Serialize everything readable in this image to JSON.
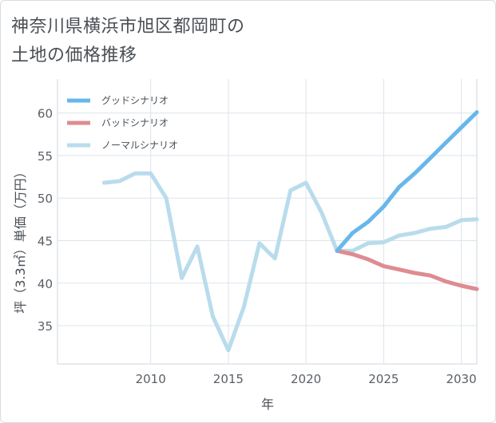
{
  "title": {
    "line1": "神奈川県横浜市旭区都岡町の",
    "line2": "土地の価格推移"
  },
  "chart_data": {
    "type": "line",
    "title": "神奈川県横浜市旭区都岡町の土地の価格推移",
    "xlabel": "年",
    "ylabel": "坪（3.3㎡）単価（万円）",
    "xlim": [
      2004,
      2031
    ],
    "ylim": [
      30.5,
      64
    ],
    "xticks": [
      2010,
      2015,
      2020,
      2025,
      2030
    ],
    "yticks": [
      35,
      40,
      45,
      50,
      55,
      60
    ],
    "grid": true,
    "legend_position": "top-left",
    "series": [
      {
        "name": "グッドシナリオ",
        "color": "#68b7ea",
        "x": [
          2022,
          2023,
          2024,
          2025,
          2026,
          2027,
          2028,
          2029,
          2030,
          2031
        ],
        "y": [
          43.8,
          45.9,
          47.2,
          49.0,
          51.3,
          52.9,
          54.7,
          56.5,
          58.3,
          60.1
        ]
      },
      {
        "name": "バッドシナリオ",
        "color": "#de8c91",
        "x": [
          2022,
          2023,
          2024,
          2025,
          2026,
          2027,
          2028,
          2029,
          2030,
          2031
        ],
        "y": [
          43.8,
          43.4,
          42.8,
          42.0,
          41.6,
          41.2,
          40.9,
          40.2,
          39.7,
          39.3
        ]
      },
      {
        "name": "ノーマルシナリオ",
        "color": "#b9dcec",
        "x": [
          2007,
          2008,
          2009,
          2010,
          2011,
          2012,
          2013,
          2014,
          2015,
          2016,
          2017,
          2018,
          2019,
          2020,
          2021,
          2022,
          2023,
          2024,
          2025,
          2026,
          2027,
          2028,
          2029,
          2030,
          2031
        ],
        "y": [
          51.8,
          52.0,
          52.9,
          52.9,
          50.0,
          40.6,
          44.3,
          36.1,
          32.1,
          37.2,
          44.7,
          42.9,
          50.9,
          51.8,
          48.3,
          43.8,
          43.8,
          44.7,
          44.8,
          45.6,
          45.9,
          46.4,
          46.6,
          47.4,
          47.5
        ]
      }
    ]
  }
}
